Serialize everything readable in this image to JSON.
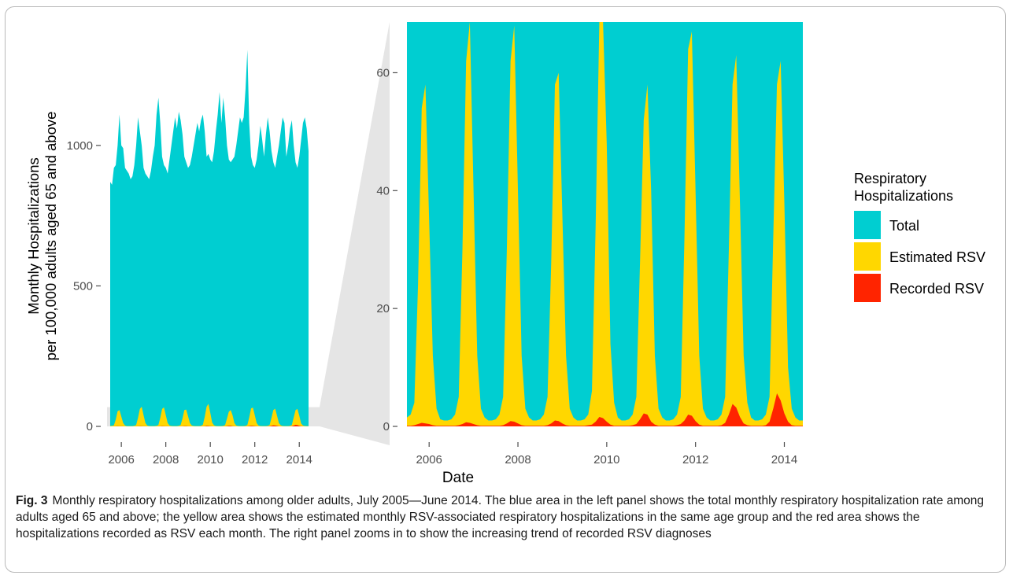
{
  "chart_data": {
    "type": "area",
    "date_range": [
      "2005-07",
      "2014-06"
    ],
    "ylabel_lines": [
      "Monthly Hospitalizations",
      "per 100,000 adults aged 65 and above"
    ],
    "xlabel": "Date",
    "x_ticks": [
      "2006",
      "2008",
      "2010",
      "2012",
      "2014"
    ],
    "legend": {
      "title_lines": [
        "Respiratory",
        "Hospitalizations"
      ],
      "position": "right",
      "items": [
        {
          "label": "Total",
          "color": "#00CED1"
        },
        {
          "label": "Estimated RSV",
          "color": "#FFD700"
        },
        {
          "label": "Recorded RSV",
          "color": "#FF2400"
        }
      ]
    },
    "colors": {
      "total": "#00CED1",
      "estimated": "#FFD700",
      "recorded": "#FF2400",
      "zoom_shade": "#e5e5e5"
    },
    "panels": [
      {
        "name": "full",
        "ylim": [
          0,
          1400
        ],
        "y_ticks": [
          0,
          500,
          1000
        ]
      },
      {
        "name": "zoom",
        "ylim": [
          0,
          68.6
        ],
        "y_ticks": [
          0,
          20,
          40,
          60
        ]
      }
    ],
    "series": [
      {
        "name": "Total",
        "values": [
          870,
          860,
          920,
          930,
          1000,
          1110,
          1000,
          990,
          920,
          910,
          900,
          880,
          890,
          930,
          1000,
          1100,
          1050,
          1000,
          920,
          900,
          890,
          880,
          910,
          960,
          1000,
          1110,
          1170,
          1080,
          960,
          930,
          920,
          900,
          950,
          1000,
          1050,
          1100,
          1060,
          1120,
          1090,
          1040,
          960,
          940,
          920,
          930,
          960,
          1000,
          1040,
          1080,
          1050,
          1090,
          1110,
          1050,
          960,
          970,
          950,
          940,
          980,
          1050,
          1110,
          1190,
          1080,
          1170,
          1100,
          1000,
          950,
          940,
          950,
          960,
          1000,
          1050,
          1100,
          1080,
          1100,
          1200,
          1340,
          1080,
          960,
          930,
          920,
          950,
          1000,
          1070,
          1020,
          960,
          1040,
          1100,
          1050,
          980,
          940,
          920,
          960,
          1000,
          1050,
          1100,
          1080,
          960,
          1000,
          1060,
          1090,
          1000,
          940,
          920,
          960,
          1020,
          1080,
          1100,
          1060,
          980
        ]
      },
      {
        "name": "Estimated RSV",
        "values": [
          1.5,
          2,
          4,
          24,
          54,
          58,
          35,
          12,
          3,
          1.2,
          1,
          1,
          1.2,
          2,
          5,
          30,
          62,
          70,
          40,
          12,
          3,
          1.5,
          1,
          1,
          1.2,
          2,
          5,
          30,
          62,
          68,
          40,
          12,
          3,
          1.5,
          1,
          1,
          1.2,
          2,
          5,
          28,
          58,
          60,
          36,
          12,
          3,
          1.5,
          1,
          1,
          1.2,
          2,
          6,
          34,
          70,
          80,
          48,
          14,
          4,
          1.5,
          1,
          1,
          1.2,
          2,
          5,
          28,
          52,
          58,
          40,
          12,
          3,
          1.5,
          1,
          1,
          1.2,
          2,
          5,
          32,
          64,
          67,
          40,
          12,
          3,
          1.5,
          1,
          1,
          1.2,
          2,
          5,
          30,
          58,
          63,
          38,
          12,
          4,
          1.5,
          1,
          1,
          1.2,
          2,
          5,
          32,
          58,
          62,
          38,
          10,
          3,
          1.5,
          1,
          1
        ]
      },
      {
        "name": "Recorded RSV",
        "values": [
          0.1,
          0.1,
          0.2,
          0.4,
          0.6,
          0.5,
          0.4,
          0.2,
          0.1,
          0.1,
          0.1,
          0.1,
          0.1,
          0.1,
          0.2,
          0.4,
          0.7,
          0.6,
          0.4,
          0.2,
          0.1,
          0.1,
          0.1,
          0.1,
          0.1,
          0.1,
          0.2,
          0.5,
          0.9,
          0.8,
          0.5,
          0.2,
          0.1,
          0.1,
          0.1,
          0.1,
          0.1,
          0.1,
          0.2,
          0.5,
          1.0,
          0.9,
          0.5,
          0.2,
          0.1,
          0.1,
          0.1,
          0.1,
          0.1,
          0.2,
          0.3,
          0.8,
          1.6,
          1.4,
          0.8,
          0.3,
          0.1,
          0.1,
          0.1,
          0.1,
          0.1,
          0.2,
          0.4,
          1.2,
          2.2,
          2.0,
          0.8,
          0.3,
          0.1,
          0.1,
          0.1,
          0.1,
          0.1,
          0.2,
          0.4,
          1.0,
          2.0,
          1.8,
          0.9,
          0.3,
          0.1,
          0.1,
          0.1,
          0.1,
          0.1,
          0.2,
          0.6,
          2.0,
          3.8,
          3.2,
          1.6,
          0.5,
          0.2,
          0.1,
          0.1,
          0.1,
          0.1,
          0.2,
          0.8,
          3.0,
          5.6,
          4.4,
          2.2,
          0.8,
          0.2,
          0.1,
          0.1,
          0.1
        ]
      }
    ]
  },
  "caption": {
    "label": "Fig. 3",
    "text": "Monthly respiratory hospitalizations among older adults, July 2005—June 2014. The blue area in the left panel shows the total monthly respiratory hospitalization rate among adults aged 65 and above; the yellow area shows the estimated monthly RSV-associated respiratory hospitalizations in the same age group and the red area shows the hospitalizations recorded as RSV each month. The right panel zooms in to show the increasing trend of recorded RSV diagnoses"
  }
}
